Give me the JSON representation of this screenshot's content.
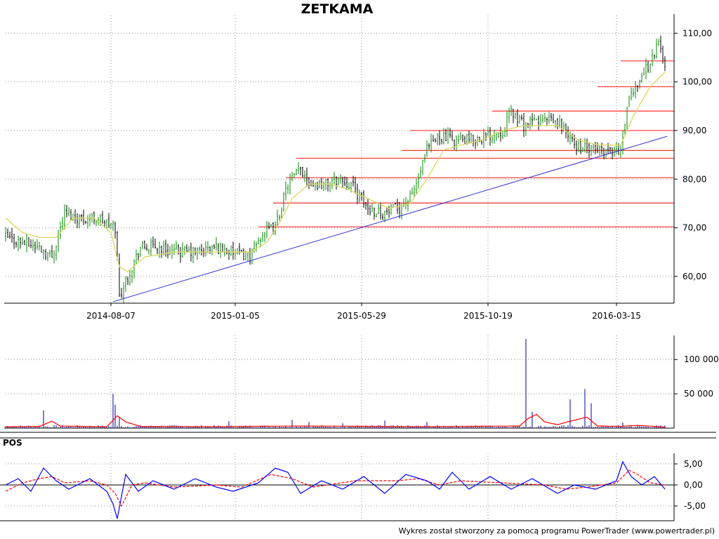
{
  "title": "ZETKAMA",
  "footer": "Wykres został stworzony za pomocą programu PowerTrader (www.powertrader.pl)",
  "colors": {
    "candle_up": "#0a8a0a",
    "candle_down": "#000000",
    "moving_average": "#d8d860",
    "support_levels": "#ff3030",
    "trend_line": "#3030d0",
    "volume_bars": "#0000a0",
    "volume_average": "#ff0000",
    "pos_line": "#0000ff",
    "pos_signal": "#ff0000",
    "grid": "#909090"
  },
  "chart_data": [
    {
      "type": "line",
      "name": "price",
      "title": "ZETKAMA",
      "x_ticks": [
        "2014-08-07",
        "2015-01-05",
        "2015-05-29",
        "2015-10-19",
        "2016-03-15"
      ],
      "y_ticks": [
        "60,00",
        "70,00",
        "80,00",
        "90,00",
        "100,00",
        "110,00"
      ],
      "ylim": [
        54.5,
        112.5
      ],
      "grid": "dotted",
      "note_points": "x = bar index (0-based, one per session); tick dates fall on bars 50, 109, 169, 229, 290",
      "series": [
        {
          "kind": "close",
          "points": [
            [
              0,
              68
            ],
            [
              8,
              67
            ],
            [
              16,
              66
            ],
            [
              22,
              64
            ],
            [
              28,
              73
            ],
            [
              36,
              72
            ],
            [
              44,
              72
            ],
            [
              52,
              70
            ],
            [
              54,
              56
            ],
            [
              58,
              60
            ],
            [
              64,
              66
            ],
            [
              72,
              66
            ],
            [
              80,
              65
            ],
            [
              90,
              65
            ],
            [
              100,
              66
            ],
            [
              108,
              65
            ],
            [
              116,
              64
            ],
            [
              122,
              69
            ],
            [
              128,
              70
            ],
            [
              134,
              79
            ],
            [
              140,
              82
            ],
            [
              146,
              79
            ],
            [
              152,
              79
            ],
            [
              158,
              80
            ],
            [
              164,
              79
            ],
            [
              172,
              74
            ],
            [
              180,
              73
            ],
            [
              186,
              74
            ],
            [
              192,
              76
            ],
            [
              196,
              80
            ],
            [
              200,
              86
            ],
            [
              206,
              89
            ],
            [
              212,
              88
            ],
            [
              220,
              88
            ],
            [
              230,
              89
            ],
            [
              236,
              90
            ],
            [
              240,
              94
            ],
            [
              246,
              91
            ],
            [
              252,
              92
            ],
            [
              258,
              92
            ],
            [
              264,
              91
            ],
            [
              270,
              87
            ],
            [
              278,
              86
            ],
            [
              286,
              86
            ],
            [
              292,
              86
            ],
            [
              295,
              95
            ],
            [
              300,
              100
            ],
            [
              306,
              104
            ],
            [
              310,
              108
            ],
            [
              313,
              104
            ]
          ]
        },
        {
          "kind": "moving_average",
          "points": [
            [
              0,
              72
            ],
            [
              8,
              69
            ],
            [
              16,
              68
            ],
            [
              24,
              68
            ],
            [
              32,
              72
            ],
            [
              42,
              72
            ],
            [
              50,
              69
            ],
            [
              54,
              62
            ],
            [
              58,
              61
            ],
            [
              66,
              64
            ],
            [
              80,
              65
            ],
            [
              100,
              65
            ],
            [
              116,
              65
            ],
            [
              124,
              67
            ],
            [
              130,
              71
            ],
            [
              136,
              76
            ],
            [
              144,
              79
            ],
            [
              154,
              79
            ],
            [
              162,
              78
            ],
            [
              172,
              76
            ],
            [
              182,
              74
            ],
            [
              192,
              75
            ],
            [
              200,
              80
            ],
            [
              208,
              86
            ],
            [
              216,
              87
            ],
            [
              226,
              88
            ],
            [
              236,
              90
            ],
            [
              246,
              91
            ],
            [
              254,
              91
            ],
            [
              262,
              91
            ],
            [
              272,
              88
            ],
            [
              282,
              87
            ],
            [
              292,
              87
            ],
            [
              298,
              93
            ],
            [
              306,
              99
            ],
            [
              313,
              102
            ]
          ]
        }
      ],
      "horizontal_levels": [
        {
          "y": 70.2,
          "from_x": 120
        },
        {
          "y": 75.1,
          "from_x": 127
        },
        {
          "y": 80.3,
          "from_x": 133
        },
        {
          "y": 84.3,
          "from_x": 138
        },
        {
          "y": 85.9,
          "from_x": 188
        },
        {
          "y": 90.0,
          "from_x": 192
        },
        {
          "y": 94.0,
          "from_x": 231
        },
        {
          "y": 99.0,
          "from_x": 281
        },
        {
          "y": 104.3,
          "from_x": 292
        }
      ],
      "trend_line": {
        "from": [
          51,
          54.8
        ],
        "to": [
          314,
          88.8
        ]
      }
    },
    {
      "type": "bar",
      "name": "volume",
      "y_ticks": [
        "50 000",
        "100 000"
      ],
      "ylim": [
        0,
        135000
      ],
      "spikes": [
        [
          18,
          26000
        ],
        [
          51,
          50000
        ],
        [
          52,
          34000
        ],
        [
          54,
          15000
        ],
        [
          106,
          10000
        ],
        [
          136,
          12000
        ],
        [
          144,
          9000
        ],
        [
          160,
          7000
        ],
        [
          180,
          11000
        ],
        [
          200,
          9000
        ],
        [
          247,
          130000
        ],
        [
          250,
          24000
        ],
        [
          268,
          42000
        ],
        [
          275,
          57000
        ],
        [
          278,
          36000
        ],
        [
          293,
          8000
        ]
      ],
      "average_points": [
        [
          0,
          2000
        ],
        [
          16,
          2500
        ],
        [
          22,
          10000
        ],
        [
          26,
          3000
        ],
        [
          48,
          2000
        ],
        [
          53,
          18000
        ],
        [
          57,
          9000
        ],
        [
          64,
          2500
        ],
        [
          100,
          2200
        ],
        [
          140,
          3000
        ],
        [
          200,
          2200
        ],
        [
          244,
          3000
        ],
        [
          248,
          14000
        ],
        [
          252,
          20000
        ],
        [
          256,
          9000
        ],
        [
          262,
          5000
        ],
        [
          268,
          10000
        ],
        [
          272,
          13000
        ],
        [
          276,
          16000
        ],
        [
          281,
          3000
        ],
        [
          292,
          2500
        ],
        [
          300,
          4000
        ],
        [
          313,
          1500
        ]
      ]
    },
    {
      "type": "line",
      "name": "POS",
      "title": "POS",
      "y_ticks": [
        "-5,00",
        "0,00",
        "5,00"
      ],
      "ylim": [
        -8.5,
        7.5
      ],
      "series": [
        {
          "kind": "pos",
          "points": [
            [
              0,
              0
            ],
            [
              6,
              1.5
            ],
            [
              12,
              -1.5
            ],
            [
              18,
              4
            ],
            [
              24,
              1
            ],
            [
              30,
              -1
            ],
            [
              40,
              1.5
            ],
            [
              48,
              -1.5
            ],
            [
              51,
              -4.5
            ],
            [
              53,
              -8
            ],
            [
              57,
              2.5
            ],
            [
              63,
              -1.5
            ],
            [
              70,
              1
            ],
            [
              80,
              -1
            ],
            [
              90,
              1.5
            ],
            [
              100,
              -0.5
            ],
            [
              108,
              -1.5
            ],
            [
              120,
              0.5
            ],
            [
              128,
              4
            ],
            [
              134,
              3
            ],
            [
              140,
              -2
            ],
            [
              150,
              1
            ],
            [
              160,
              -1
            ],
            [
              170,
              2
            ],
            [
              180,
              -2
            ],
            [
              190,
              2.5
            ],
            [
              200,
              1
            ],
            [
              206,
              -1
            ],
            [
              212,
              3
            ],
            [
              220,
              -1
            ],
            [
              230,
              2
            ],
            [
              240,
              -1
            ],
            [
              250,
              1.5
            ],
            [
              262,
              -2
            ],
            [
              270,
              0
            ],
            [
              280,
              -1
            ],
            [
              290,
              1
            ],
            [
              293,
              5.5
            ],
            [
              297,
              2
            ],
            [
              302,
              0
            ],
            [
              308,
              2
            ],
            [
              313,
              -1
            ]
          ]
        },
        {
          "kind": "signal",
          "points": [
            [
              0,
              -1.5
            ],
            [
              8,
              0.5
            ],
            [
              16,
              1.5
            ],
            [
              22,
              2
            ],
            [
              28,
              0.5
            ],
            [
              40,
              1
            ],
            [
              48,
              0
            ],
            [
              52,
              -2
            ],
            [
              55,
              -5
            ],
            [
              60,
              0
            ],
            [
              66,
              0.5
            ],
            [
              80,
              -0.5
            ],
            [
              100,
              0
            ],
            [
              112,
              -0.5
            ],
            [
              126,
              2.5
            ],
            [
              136,
              1.5
            ],
            [
              146,
              -0.5
            ],
            [
              166,
              1
            ],
            [
              186,
              1
            ],
            [
              196,
              1.5
            ],
            [
              206,
              0
            ],
            [
              216,
              1
            ],
            [
              236,
              0.5
            ],
            [
              256,
              0
            ],
            [
              266,
              -1
            ],
            [
              276,
              -0.5
            ],
            [
              290,
              0.5
            ],
            [
              296,
              3.5
            ],
            [
              300,
              2.5
            ],
            [
              306,
              0.5
            ],
            [
              313,
              0
            ]
          ]
        }
      ]
    }
  ]
}
